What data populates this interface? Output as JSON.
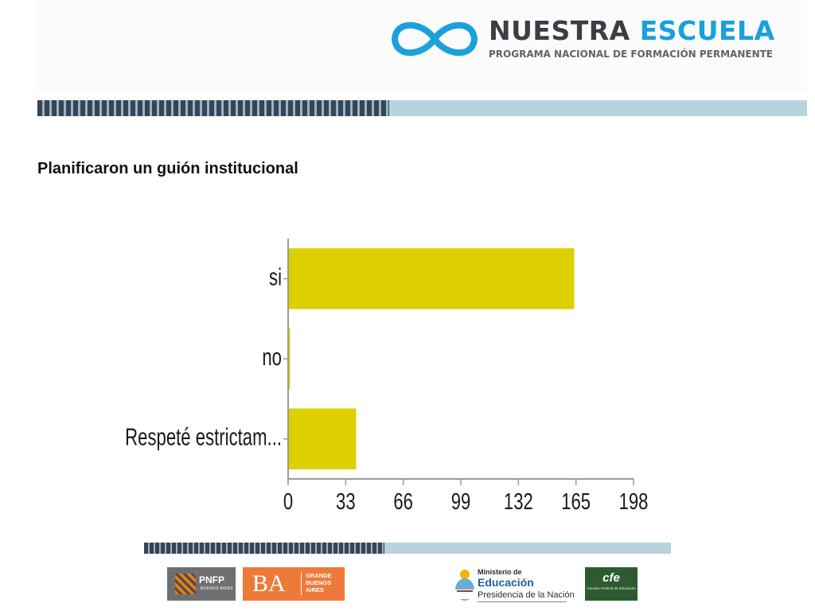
{
  "header": {
    "brand_part1": "NUESTRA",
    "brand_part2": "ESCUELA",
    "brand_tagline": "PROGRAMA NACIONAL DE FORMACIÓN PERMANENTE",
    "colors": {
      "brand_dark": "#3a3f46",
      "brand_blue": "#1aa0db",
      "rule_dark": "#3b4352",
      "rule_light": "#b8d3e0"
    },
    "logo_icon": "infinity-logo-icon"
  },
  "slide": {
    "title": "Planificaron un guión institucional"
  },
  "chart_data": {
    "type": "bar",
    "orientation": "horizontal",
    "categories": [
      "si",
      "no",
      "Respeté estrictam..."
    ],
    "values": [
      164,
      1,
      39
    ],
    "xlim": [
      0,
      198
    ],
    "xticks": [
      "0",
      "33",
      "66",
      "99",
      "132",
      "165",
      "198"
    ],
    "bar_color": "#ddd000",
    "title": "",
    "xlabel": "",
    "ylabel": "",
    "grid": false
  },
  "footer": {
    "pnfp": {
      "label": "PNFP",
      "sub": "BUENOS AIRES"
    },
    "ba": {
      "letters": "BA",
      "text": "GRANDE BUENOS AIRES"
    },
    "ministerio": {
      "line1": "Ministerio de",
      "line2": "Educación",
      "line3": "Presidencia de la Nación"
    },
    "cfe": {
      "label": "cfe",
      "sub": "Consejo Federal de Educación"
    }
  }
}
